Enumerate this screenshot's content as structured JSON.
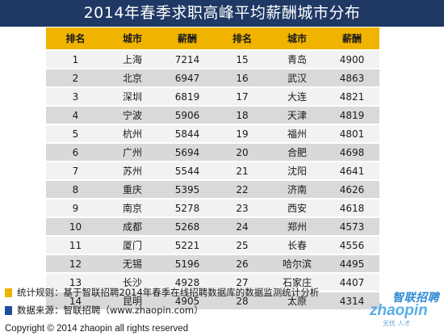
{
  "title": "2014年春季求职高峰平均薪酬城市分布",
  "table": {
    "headers": [
      "排名",
      "城市",
      "薪酬",
      "排名",
      "城市",
      "薪酬"
    ],
    "rows": [
      [
        "1",
        "上海",
        "7214",
        "15",
        "青岛",
        "4900"
      ],
      [
        "2",
        "北京",
        "6947",
        "16",
        "武汉",
        "4863"
      ],
      [
        "3",
        "深圳",
        "6819",
        "17",
        "大连",
        "4821"
      ],
      [
        "4",
        "宁波",
        "5906",
        "18",
        "天津",
        "4819"
      ],
      [
        "5",
        "杭州",
        "5844",
        "19",
        "福州",
        "4801"
      ],
      [
        "6",
        "广州",
        "5694",
        "20",
        "合肥",
        "4698"
      ],
      [
        "7",
        "苏州",
        "5544",
        "21",
        "沈阳",
        "4641"
      ],
      [
        "8",
        "重庆",
        "5395",
        "22",
        "济南",
        "4626"
      ],
      [
        "9",
        "南京",
        "5278",
        "23",
        "西安",
        "4618"
      ],
      [
        "10",
        "成都",
        "5268",
        "24",
        "郑州",
        "4573"
      ],
      [
        "11",
        "厦门",
        "5221",
        "25",
        "长春",
        "4556"
      ],
      [
        "12",
        "无锡",
        "5196",
        "26",
        "哈尔滨",
        "4495"
      ],
      [
        "13",
        "长沙",
        "4928",
        "27",
        "石家庄",
        "4407"
      ],
      [
        "14",
        "昆明",
        "4905",
        "28",
        "太原",
        "4314"
      ]
    ]
  },
  "notes": {
    "stats_rule": "统计规则：基于智联招聘2014年春季在线招聘数据库的数据监测统计分析",
    "source": "数据来源：智联招聘（www.zhaopin.com）"
  },
  "copyright": "Copyright  ©  2014 zhaopin all rights reserved",
  "watermark": {
    "brand": "智联招聘",
    "url": "zhaopin",
    "tag": "无忧  人才"
  },
  "colors": {
    "title_bg": "#1f3864",
    "header_bg": "#f0b300",
    "note_yellow": "#f0b300",
    "note_blue": "#1f4e9c"
  }
}
